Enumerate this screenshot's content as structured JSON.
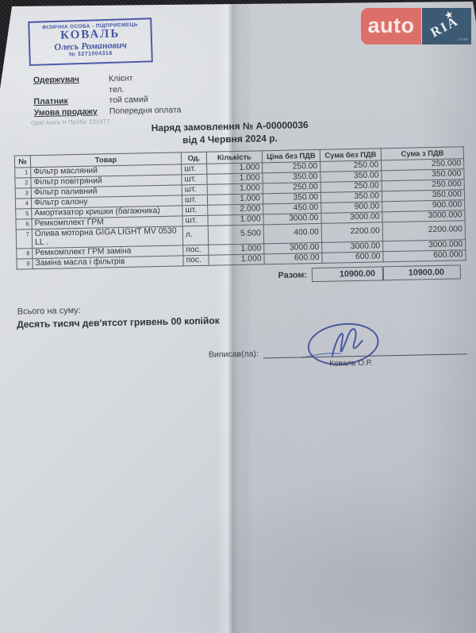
{
  "watermark": {
    "auto_label": "auto",
    "ria_label": "RIA",
    "star_glyph": "★",
    "domain_label": ".com"
  },
  "stamp": {
    "line1": "ФІЗИЧНА ОСОБА - ПІДПРИЄМЕЦЬ",
    "line2": "КОВАЛЬ",
    "line3": "Олесь Романович",
    "line4": "№ 3271004316"
  },
  "recipient": {
    "rows": [
      {
        "label": "Одержувач",
        "value": "Клієнт"
      },
      {
        "label": "",
        "value": "тел."
      },
      {
        "label": "Платник",
        "value": "той самий"
      },
      {
        "label": "Умова продажу",
        "value": "Попередня оплата"
      }
    ],
    "vehicle_note": "Opel Astra H Пробіг 231977"
  },
  "title": {
    "line1": "Наряд замовлення № А-00000036",
    "line2": "від 4 Червня 2024 р."
  },
  "table": {
    "headers": [
      "№",
      "Товар",
      "Од.",
      "Кількість",
      "Ціна без ПДВ",
      "Сума без ПДВ",
      "Сума з ПДВ"
    ],
    "rows": [
      [
        "1",
        "Фільтр масляний",
        "шт.",
        "1.000",
        "250.00",
        "250.00",
        "250.000"
      ],
      [
        "2",
        "Фільтр повітряний",
        "шт.",
        "1.000",
        "350.00",
        "350.00",
        "350.000"
      ],
      [
        "3",
        "Фільтр паливний",
        "шт.",
        "1.000",
        "250.00",
        "250.00",
        "250.000"
      ],
      [
        "4",
        "Фільтр салону",
        "шт.",
        "1.000",
        "350.00",
        "350.00",
        "350.000"
      ],
      [
        "5",
        "Амортизатор кришки (багажника)",
        "шт.",
        "2.000",
        "450.00",
        "900.00",
        "900.000"
      ],
      [
        "6",
        "Ремкомплект ГРМ",
        "шт.",
        "1.000",
        "3000.00",
        "3000.00",
        "3000.000"
      ],
      [
        "7",
        "Олива моторна GIGA LIGHT MV 0530\nLL .",
        "л.",
        "5.500",
        "400.00",
        "2200.00",
        "2200.000"
      ],
      [
        "8",
        "Ремкомплект ГРМ заміна",
        "пос.",
        "1.000",
        "3000.00",
        "3000.00",
        "3000.000"
      ],
      [
        "9",
        "Заміна масла і фільтрів",
        "пос.",
        "1.000",
        "600.00",
        "600.00",
        "600.000"
      ]
    ],
    "total_label": "Разом:",
    "total_no_vat": "10900.00",
    "total_with_vat": "10900.00"
  },
  "summary": {
    "label": "Всього на суму:",
    "amount_in_words": "Десять тисяч дев'ятсот гривень 00 копійок"
  },
  "signature": {
    "label": "Виписав(ла):",
    "name": "Коваль О.Р."
  }
}
